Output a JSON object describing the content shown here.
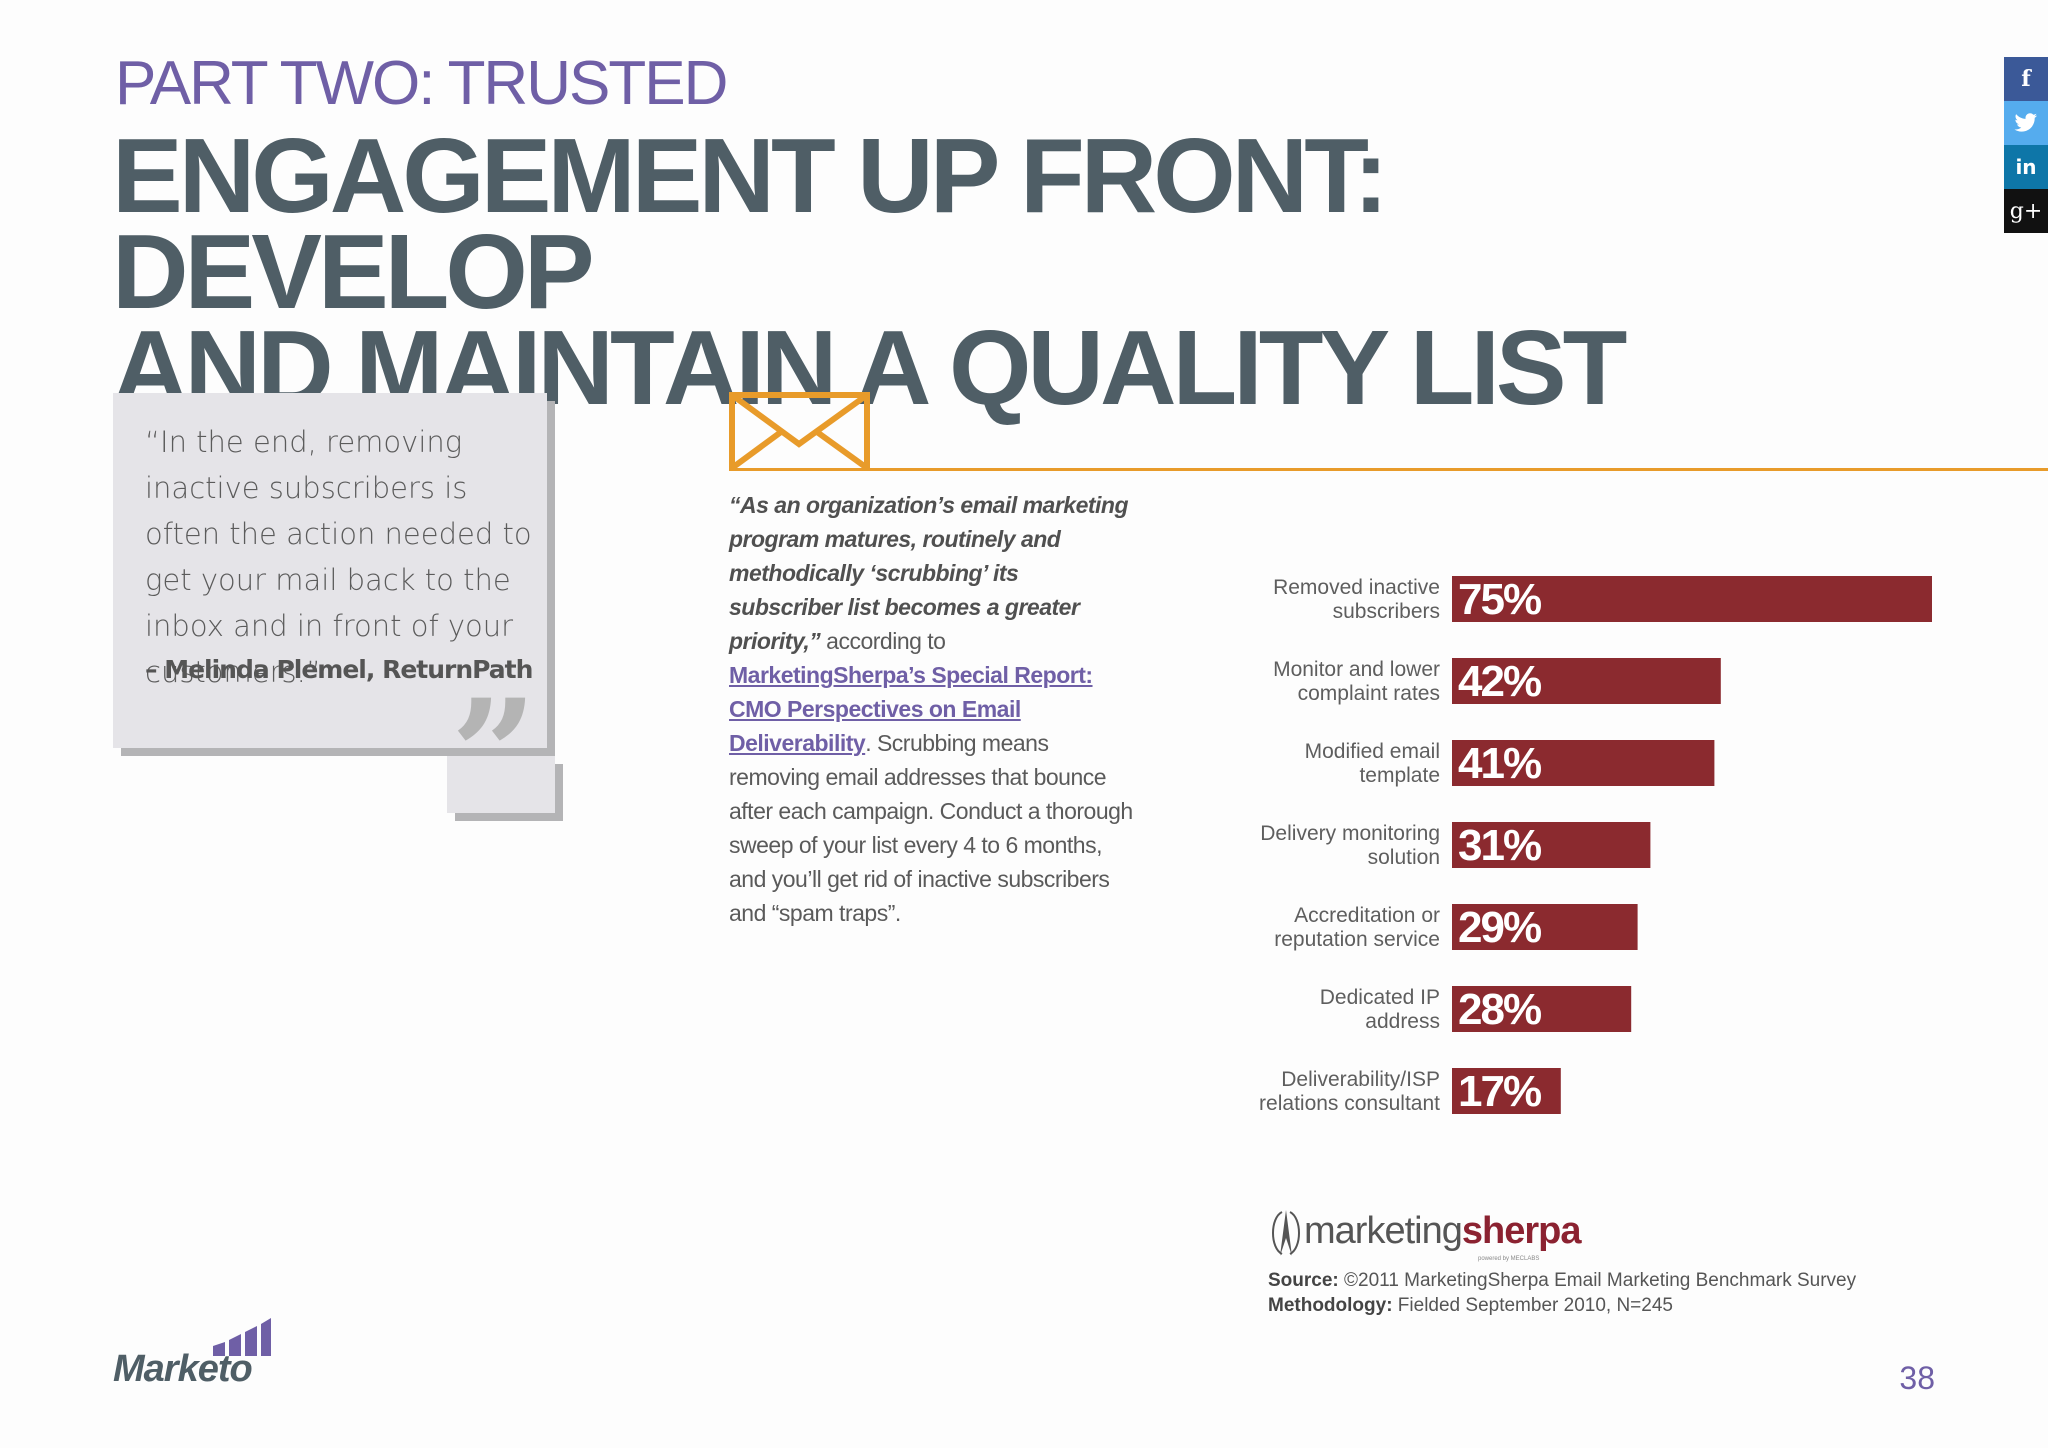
{
  "header": {
    "kicker": "PART TWO: TRUSTED",
    "title_line1": "ENGAGEMENT UP FRONT: DEVELOP",
    "title_line2": "AND MAINTAIN A QUALITY LIST"
  },
  "social": [
    {
      "icon": "facebook-icon",
      "glyph": "f",
      "color": "#3b5998"
    },
    {
      "icon": "twitter-icon",
      "glyph": "t",
      "color": "#55acee"
    },
    {
      "icon": "linkedin-icon",
      "glyph": "in",
      "color": "#0e76a8"
    },
    {
      "icon": "google-plus-icon",
      "glyph": "g+",
      "color": "#111111"
    }
  ],
  "quote": {
    "text": "“In the end, removing inactive subscribers is often the action needed to get your mail back to the inbox and in front of your customers.”",
    "author": "– Melinda Plemel, ReturnPath",
    "mark": "”"
  },
  "body": {
    "lead": "“As an organization’s email marketing program matures, routinely and methodically ‘scrubbing’ its subscriber list becomes a greater priority,”",
    "pre_link": " according to ",
    "link": "MarketingSherpa’s Special Report: CMO Perspectives on Email Deliverability",
    "post_link": ". Scrubbing means removing email addresses that bounce after each campaign. Conduct a thorough sweep of your list every 4 to 6 months, and you’ll get rid of inactive subscribers and “spam traps”."
  },
  "chart_data": {
    "type": "bar",
    "orientation": "horizontal",
    "bar_color": "#8b2a2f",
    "categories": [
      [
        "Removed inactive",
        "subscribers"
      ],
      [
        "Monitor and lower",
        "complaint rates"
      ],
      [
        "Modified email",
        "template"
      ],
      [
        "Delivery monitoring",
        "solution"
      ],
      [
        "Accreditation or",
        "reputation service"
      ],
      [
        "Dedicated IP",
        "address"
      ],
      [
        "Deliverability/ISP",
        "relations consultant"
      ]
    ],
    "values": [
      75,
      42,
      41,
      31,
      29,
      28,
      17
    ],
    "value_labels": [
      "75%",
      "42%",
      "41%",
      "31%",
      "29%",
      "28%",
      "17%"
    ],
    "xlim": [
      0,
      75
    ]
  },
  "source": {
    "brand_left": "marketing",
    "brand_right": "sherpa",
    "brand_sub": "powered by MECLABS",
    "source_label": "Source:",
    "source_text": " ©2011 MarketingSherpa Email Marketing Benchmark Survey",
    "method_label": "Methodology:",
    "method_text": " Fielded September 2010, N=245"
  },
  "footer": {
    "logo": "Marketo",
    "page": "38"
  }
}
